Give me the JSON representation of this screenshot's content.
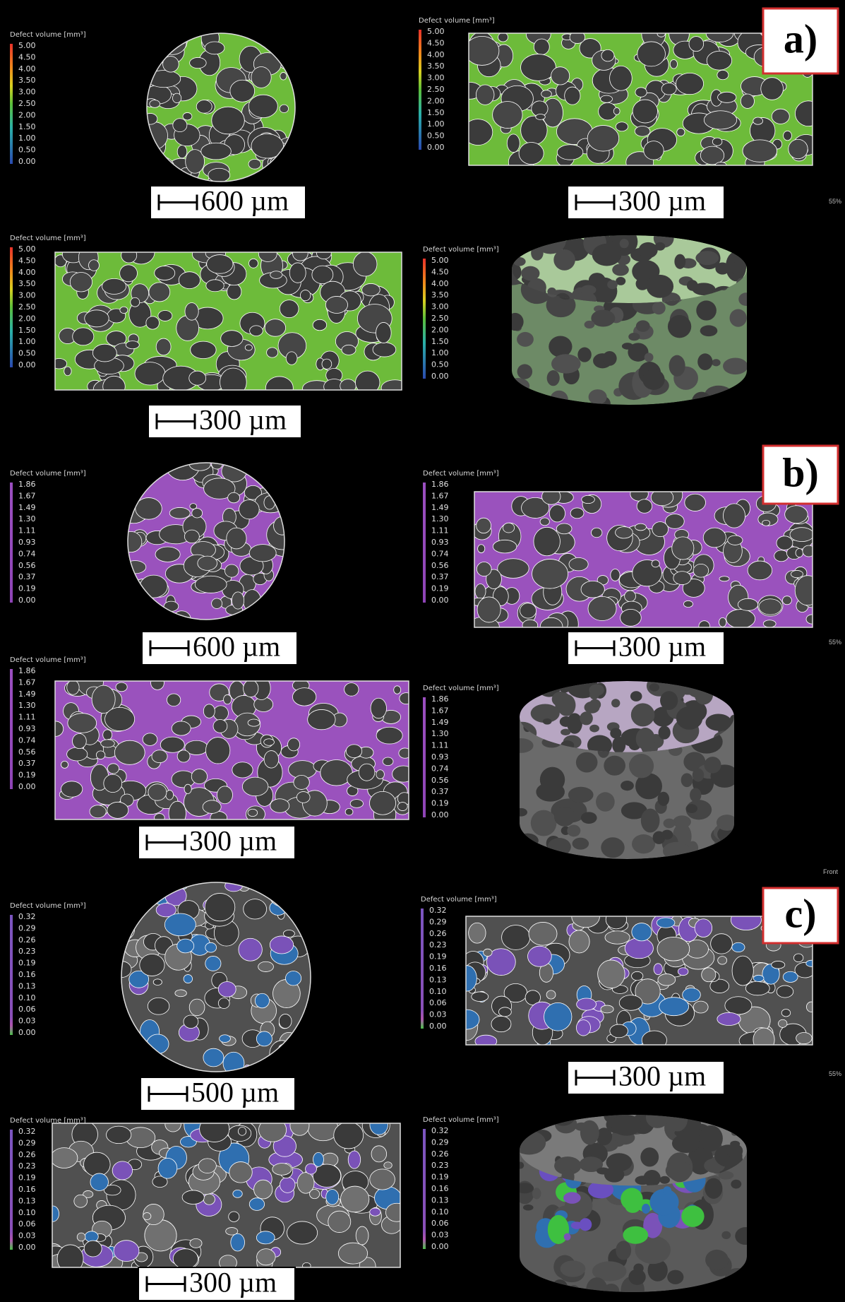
{
  "groups": [
    {
      "label": "a)",
      "panels": [
        {
          "legend_title": "Defect volume [mm³]",
          "legend_ticks": [
            "5.00",
            "4.50",
            "4.00",
            "3.50",
            "3.00",
            "2.50",
            "2.00",
            "1.50",
            "1.00",
            "0.50",
            "0.00"
          ],
          "scale_bar": "600 µm"
        },
        {
          "legend_title": "Defect volume [mm³]",
          "legend_ticks": [
            "5.00",
            "4.50",
            "4.00",
            "3.50",
            "3.00",
            "2.50",
            "2.00",
            "1.50",
            "1.00",
            "0.50",
            "0.00"
          ],
          "scale_bar": "300 µm"
        },
        {
          "legend_title": "Defect volume [mm³]",
          "legend_ticks": [
            "5.00",
            "4.50",
            "4.00",
            "3.50",
            "3.00",
            "2.50",
            "2.00",
            "1.50",
            "1.00",
            "0.50",
            "0.00"
          ],
          "scale_bar": "300 µm"
        },
        {
          "legend_title": "Defect volume [mm³]",
          "legend_ticks": [
            "5.00",
            "4.50",
            "4.00",
            "3.50",
            "3.00",
            "2.50",
            "2.00",
            "1.50",
            "1.00",
            "0.50",
            "0.00"
          ]
        }
      ]
    },
    {
      "label": "b)",
      "panels": [
        {
          "legend_title": "Defect volume [mm³]",
          "legend_ticks": [
            "1.86",
            "1.67",
            "1.49",
            "1.30",
            "1.11",
            "0.93",
            "0.74",
            "0.56",
            "0.37",
            "0.19",
            "0.00"
          ],
          "scale_bar": "600 µm"
        },
        {
          "legend_title": "Defect volume [mm³]",
          "legend_ticks": [
            "1.86",
            "1.67",
            "1.49",
            "1.30",
            "1.11",
            "0.93",
            "0.74",
            "0.56",
            "0.37",
            "0.19",
            "0.00"
          ],
          "scale_bar": "300 µm"
        },
        {
          "legend_title": "Defect volume [mm³]",
          "legend_ticks": [
            "1.86",
            "1.67",
            "1.49",
            "1.30",
            "1.11",
            "0.93",
            "0.74",
            "0.56",
            "0.37",
            "0.19",
            "0.00"
          ],
          "scale_bar": "300 µm"
        },
        {
          "legend_title": "Defect volume [mm³]",
          "legend_ticks": [
            "1.86",
            "1.67",
            "1.49",
            "1.30",
            "1.11",
            "0.93",
            "0.74",
            "0.56",
            "0.37",
            "0.19",
            "0.00"
          ]
        }
      ]
    },
    {
      "label": "c)",
      "panels": [
        {
          "legend_title": "Defect volume [mm³]",
          "legend_ticks": [
            "0.32",
            "0.29",
            "0.26",
            "0.23",
            "0.19",
            "0.16",
            "0.13",
            "0.10",
            "0.06",
            "0.03",
            "0.00"
          ],
          "scale_bar": "500 µm"
        },
        {
          "legend_title": "Defect volume [mm³]",
          "legend_ticks": [
            "0.32",
            "0.29",
            "0.26",
            "0.23",
            "0.19",
            "0.16",
            "0.13",
            "0.10",
            "0.06",
            "0.03",
            "0.00"
          ],
          "scale_bar": "300 µm"
        },
        {
          "legend_title": "Defect volume [mm³]",
          "legend_ticks": [
            "0.32",
            "0.29",
            "0.26",
            "0.23",
            "0.19",
            "0.16",
            "0.13",
            "0.10",
            "0.06",
            "0.03",
            "0.00"
          ],
          "scale_bar": "300 µm"
        },
        {
          "legend_title": "Defect volume [mm³]",
          "legend_ticks": [
            "0.32",
            "0.29",
            "0.26",
            "0.23",
            "0.19",
            "0.16",
            "0.13",
            "0.10",
            "0.06",
            "0.03",
            "0.00"
          ]
        }
      ]
    }
  ],
  "side_notes": [
    "55%",
    "55%",
    "55%",
    "Front"
  ]
}
